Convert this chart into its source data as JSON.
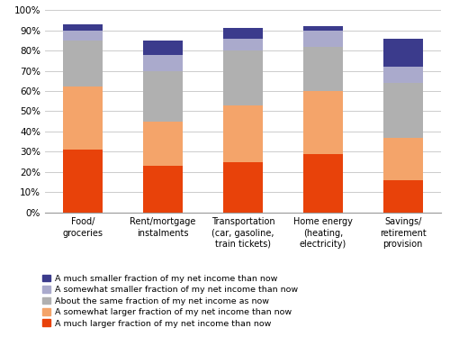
{
  "categories": [
    "Food/\ngroceries",
    "Rent/mortgage\ninstalments",
    "Transportation\n(car, gasoline,\ntrain tickets)",
    "Home energy\n(heating,\nelectricity)",
    "Savings/\nretirement\nprovision"
  ],
  "series": {
    "A much larger fraction of my net income than now": [
      31,
      23,
      25,
      29,
      16
    ],
    "A somewhat larger fraction of my net income than now": [
      31,
      22,
      28,
      31,
      21
    ],
    "About the same fraction of my net income as now": [
      23,
      25,
      27,
      22,
      27
    ],
    "A somewhat smaller fraction of my net income than now": [
      5,
      8,
      6,
      8,
      8
    ],
    "A much smaller fraction of my net income than now": [
      3,
      7,
      5,
      2,
      14
    ]
  },
  "colors": {
    "A much larger fraction of my net income than now": "#E8420A",
    "A somewhat larger fraction of my net income than now": "#F4A46A",
    "About the same fraction of my net income as now": "#B0B0B0",
    "A somewhat smaller fraction of my net income than now": "#AAAACC",
    "A much smaller fraction of my net income than now": "#3B3B8C"
  },
  "ylim": [
    0,
    100
  ],
  "yticks": [
    0,
    10,
    20,
    30,
    40,
    50,
    60,
    70,
    80,
    90,
    100
  ],
  "ytick_labels": [
    "0%",
    "10%",
    "20%",
    "30%",
    "40%",
    "50%",
    "60%",
    "70%",
    "80%",
    "90%",
    "100%"
  ],
  "legend_order": [
    "A much smaller fraction of my net income than now",
    "A somewhat smaller fraction of my net income than now",
    "About the same fraction of my net income as now",
    "A somewhat larger fraction of my net income than now",
    "A much larger fraction of my net income than now"
  ]
}
